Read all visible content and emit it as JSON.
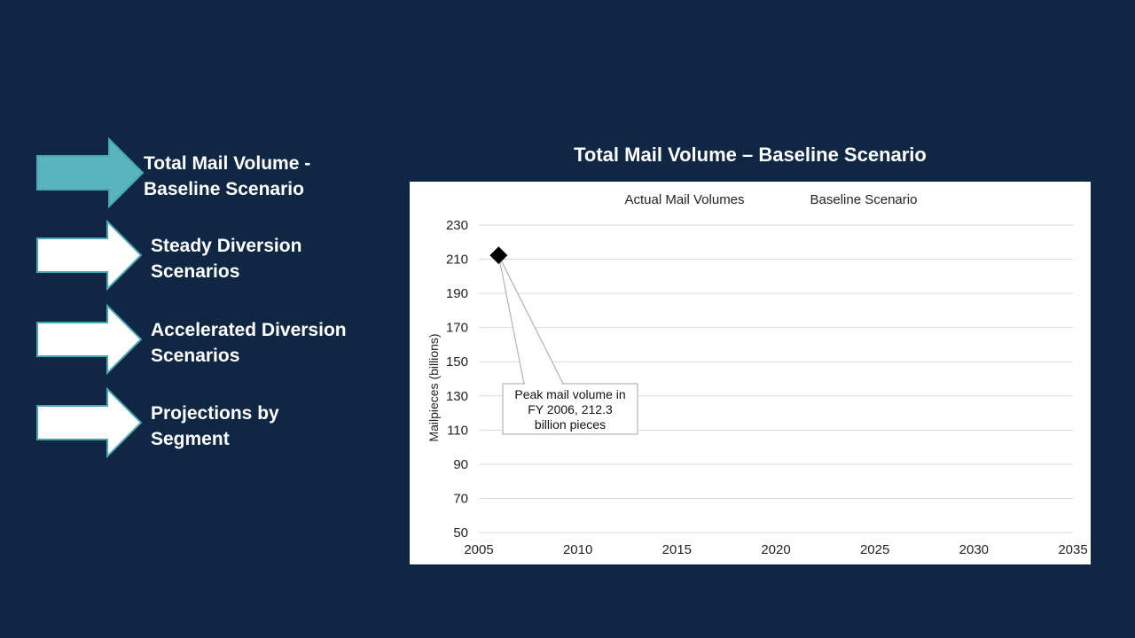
{
  "nav": {
    "items": [
      {
        "label": "Total Mail Volume -\nBaseline Scenario",
        "active": true
      },
      {
        "label": "Steady Diversion\nScenarios",
        "active": false
      },
      {
        "label": "Accelerated Diversion\nScenarios",
        "active": false
      },
      {
        "label": "Projections by\nSegment",
        "active": false
      }
    ],
    "colors": {
      "active": "#5ab4bd",
      "inactive": "#ffffff",
      "border": "#4aa6b0"
    }
  },
  "chart_data": {
    "type": "scatter",
    "title": "Total Mail Volume – Baseline Scenario",
    "xlabel": "",
    "ylabel": "Mailpieces (billions)",
    "xlim": [
      2005,
      2035
    ],
    "ylim": [
      50,
      230
    ],
    "x_ticks": [
      2005,
      2010,
      2015,
      2020,
      2025,
      2030,
      2035
    ],
    "y_ticks": [
      50,
      70,
      90,
      110,
      130,
      150,
      170,
      190,
      210,
      230
    ],
    "grid": true,
    "legend": {
      "position": "top",
      "entries": [
        "Actual Mail Volumes",
        "Baseline Scenario"
      ]
    },
    "series": [
      {
        "name": "Actual Mail Volumes",
        "marker": "diamond",
        "color": "#000000",
        "points": [
          {
            "x": 2006,
            "y": 212.3
          }
        ]
      }
    ],
    "annotations": [
      {
        "text": "Peak mail volume in FY 2006, 212.3 billion pieces",
        "x": 2006,
        "y": 212.3
      }
    ]
  }
}
